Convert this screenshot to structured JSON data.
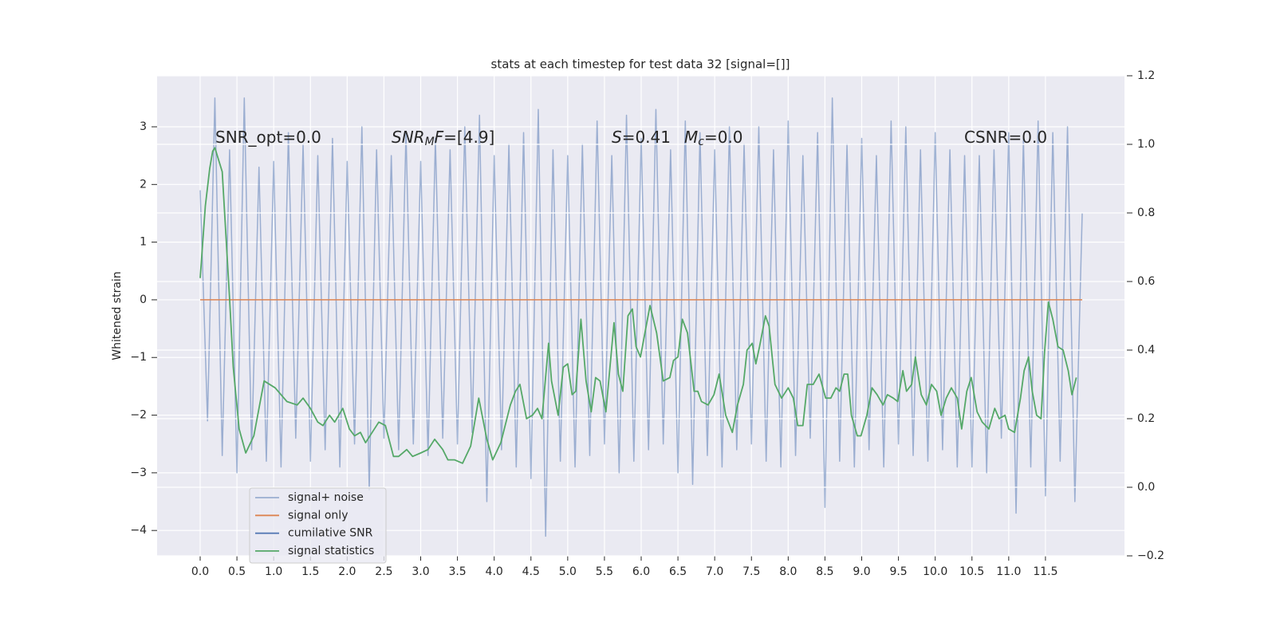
{
  "chart_data": {
    "type": "line",
    "title": "stats at each timestep for test data 32 [signal=[]]",
    "ylabel": "Whitened strain",
    "xlim": [
      -0.586,
      12.575
    ],
    "ylim": [
      -4.44,
      3.885
    ],
    "y2lim": [
      -0.2,
      1.2
    ],
    "xticks": [
      {
        "value": 0,
        "label": "0.0"
      },
      0.5,
      {
        "value": 1,
        "label": "1.0"
      },
      1.5,
      {
        "value": 2,
        "label": "2.0"
      },
      2.5,
      {
        "value": 3,
        "label": "3.0"
      },
      3.5,
      {
        "value": 4,
        "label": "4.0"
      },
      4.5,
      {
        "value": 5,
        "label": "5.0"
      },
      5.5,
      {
        "value": 6,
        "label": "6.0"
      },
      6.5,
      {
        "value": 7,
        "label": "7.0"
      },
      7.5,
      {
        "value": 8,
        "label": "8.0"
      },
      8.5,
      {
        "value": 9,
        "label": "9.0"
      },
      9.5,
      {
        "value": 10,
        "label": "10.0"
      },
      10.5,
      {
        "value": 11,
        "label": "11.0"
      },
      11.5
    ],
    "yticks": [
      {
        "value": -4,
        "label": "−4"
      },
      {
        "value": -3,
        "label": "−3"
      },
      {
        "value": -2,
        "label": "−2"
      },
      {
        "value": -1,
        "label": "−1"
      },
      0,
      1,
      2,
      3
    ],
    "y2ticks": [
      {
        "value": -0.2,
        "label": "−0.2"
      },
      {
        "value": 0,
        "label": "0.0"
      },
      0.2,
      0.4,
      0.6,
      0.8,
      {
        "value": 1,
        "label": "1.0"
      },
      1.2
    ],
    "grid": true,
    "legend": "lower left",
    "annotations": [
      {
        "parts": [
          {
            "text": "SNR_opt=0.0"
          }
        ]
      },
      {
        "parts": [
          {
            "text": "SNR",
            "italic": true
          },
          {
            "text": "M",
            "italic": true,
            "sub": true
          },
          {
            "text": "F",
            "italic": true
          },
          {
            "text": "=[4.9]"
          }
        ]
      },
      {
        "parts": [
          {
            "text": "S",
            "italic": true
          },
          {
            "text": "=0.41"
          }
        ]
      },
      {
        "parts": [
          {
            "text": "M",
            "italic": true
          },
          {
            "text": "c",
            "italic": true,
            "sub": true
          },
          {
            "text": "=0.0"
          }
        ]
      },
      {
        "parts": [
          {
            "text": "CSNR=0.0"
          }
        ]
      }
    ],
    "series": [
      {
        "name": "signal+ noise",
        "color": "#4c72b0",
        "opacity": 0.5,
        "x": [
          0,
          0.1,
          0.2,
          0.3,
          0.4,
          0.5,
          0.6,
          0.7,
          0.8,
          0.9,
          1,
          1.1,
          1.2,
          1.3,
          1.4,
          1.5,
          1.6,
          1.7,
          1.8,
          1.9,
          2,
          2.1,
          2.2,
          2.3,
          2.4,
          2.5,
          2.6,
          2.7,
          2.8,
          2.9,
          3,
          3.1,
          3.2,
          3.3,
          3.4,
          3.5,
          3.6,
          3.7,
          3.8,
          3.9,
          4,
          4.1,
          4.2,
          4.3,
          4.4,
          4.5,
          4.6,
          4.7,
          4.8,
          4.9,
          5,
          5.1,
          5.2,
          5.3,
          5.4,
          5.5,
          5.6,
          5.7,
          5.8,
          5.9,
          6,
          6.1,
          6.2,
          6.3,
          6.4,
          6.5,
          6.6,
          6.7,
          6.8,
          6.9,
          7,
          7.1,
          7.2,
          7.3,
          7.4,
          7.5,
          7.6,
          7.7,
          7.8,
          7.9,
          8,
          8.1,
          8.2,
          8.3,
          8.4,
          8.5,
          8.6,
          8.7,
          8.8,
          8.9,
          9,
          9.1,
          9.2,
          9.3,
          9.4,
          9.5,
          9.6,
          9.7,
          9.8,
          9.9,
          10,
          10.1,
          10.2,
          10.3,
          10.4,
          10.5,
          10.6,
          10.7,
          10.8,
          10.9,
          11,
          11.1,
          11.2,
          11.3,
          11.4,
          11.5,
          11.6,
          11.7,
          11.8,
          11.9,
          12
        ],
        "values": [
          1.9,
          -2.1,
          3.5,
          -2.7,
          2.6,
          -3.0,
          3.5,
          -2.6,
          2.3,
          -2.8,
          2.4,
          -2.9,
          2.9,
          -2.4,
          2.7,
          -2.8,
          2.5,
          -2.6,
          2.8,
          -2.9,
          2.4,
          -2.5,
          3.0,
          -3.3,
          2.6,
          -2.4,
          2.5,
          -2.6,
          2.9,
          -2.5,
          2.4,
          -2.7,
          2.8,
          -2.4,
          2.6,
          -2.5,
          3.0,
          -2.3,
          3.2,
          -3.5,
          2.5,
          -2.6,
          2.7,
          -2.9,
          2.9,
          -3.1,
          3.3,
          -4.1,
          2.6,
          -2.8,
          2.5,
          -2.9,
          2.7,
          -2.7,
          3.1,
          -2.5,
          2.5,
          -3.0,
          3.2,
          -2.8,
          2.8,
          -2.6,
          3.3,
          -2.5,
          2.6,
          -3.0,
          3.1,
          -3.2,
          2.9,
          -2.7,
          2.6,
          -2.9,
          3.0,
          -2.6,
          2.7,
          -2.5,
          3.0,
          -2.8,
          2.6,
          -2.9,
          3.1,
          -2.7,
          2.5,
          -2.4,
          2.9,
          -3.6,
          3.5,
          -2.8,
          2.7,
          -2.9,
          2.8,
          -2.6,
          2.5,
          -2.9,
          3.1,
          -2.5,
          3.0,
          -2.7,
          2.6,
          -2.8,
          2.9,
          -2.6,
          2.6,
          -2.9,
          2.5,
          -2.9,
          2.5,
          -3.0,
          2.6,
          -2.4,
          2.9,
          -3.7,
          2.8,
          -2.9,
          3.1,
          -3.4,
          2.9,
          -2.8,
          3.0,
          -3.5,
          1.5
        ]
      },
      {
        "name": "signal only",
        "color": "#dd8452",
        "x": [
          0,
          12
        ],
        "values": [
          0,
          0
        ]
      },
      {
        "name": "cumilative SNR",
        "color": "#4c72b0"
      },
      {
        "name": "signal statistics",
        "color": "#55a868",
        "axis": "y2",
        "x": [
          0,
          0.07,
          0.13,
          0.17,
          0.2,
          0.3,
          0.4,
          0.45,
          0.53,
          0.62,
          0.73,
          0.87,
          1.02,
          1.18,
          1.32,
          1.4,
          1.5,
          1.6,
          1.67,
          1.76,
          1.83,
          1.94,
          2.03,
          2.1,
          2.18,
          2.25,
          2.34,
          2.43,
          2.52,
          2.63,
          2.7,
          2.81,
          2.89,
          3.0,
          3.1,
          3.19,
          3.3,
          3.37,
          3.46,
          3.57,
          3.68,
          3.79,
          3.9,
          3.98,
          4.09,
          4.22,
          4.29,
          4.35,
          4.44,
          4.52,
          4.59,
          4.65,
          4.74,
          4.78,
          4.87,
          4.94,
          5.0,
          5.06,
          5.11,
          5.18,
          5.25,
          5.32,
          5.38,
          5.44,
          5.52,
          5.63,
          5.69,
          5.75,
          5.82,
          5.88,
          5.93,
          5.99,
          6.12,
          6.21,
          6.3,
          6.39,
          6.44,
          6.5,
          6.56,
          6.63,
          6.72,
          6.77,
          6.82,
          6.91,
          6.99,
          7.06,
          7.15,
          7.24,
          7.31,
          7.39,
          7.44,
          7.51,
          7.56,
          7.61,
          7.69,
          7.74,
          7.82,
          7.91,
          8.0,
          8.07,
          8.13,
          8.2,
          8.26,
          8.34,
          8.42,
          8.51,
          8.58,
          8.65,
          8.7,
          8.76,
          8.81,
          8.86,
          8.94,
          8.99,
          9.07,
          9.14,
          9.21,
          9.29,
          9.35,
          9.43,
          9.49,
          9.56,
          9.61,
          9.68,
          9.73,
          9.81,
          9.88,
          9.95,
          10.02,
          10.08,
          10.15,
          10.22,
          10.3,
          10.36,
          10.43,
          10.49,
          10.57,
          10.64,
          10.73,
          10.81,
          10.87,
          10.95,
          11.0,
          11.08,
          11.16,
          11.21,
          11.27,
          11.32,
          11.38,
          11.44,
          11.49,
          11.54,
          11.6,
          11.67,
          11.74,
          11.81,
          11.86,
          11.92
        ],
        "values": [
          0.61,
          0.82,
          0.93,
          0.98,
          0.99,
          0.92,
          0.55,
          0.35,
          0.17,
          0.1,
          0.15,
          0.31,
          0.29,
          0.25,
          0.24,
          0.26,
          0.23,
          0.19,
          0.18,
          0.21,
          0.19,
          0.23,
          0.17,
          0.15,
          0.16,
          0.13,
          0.16,
          0.19,
          0.18,
          0.09,
          0.09,
          0.11,
          0.09,
          0.1,
          0.11,
          0.14,
          0.11,
          0.08,
          0.08,
          0.07,
          0.12,
          0.26,
          0.14,
          0.08,
          0.13,
          0.24,
          0.28,
          0.3,
          0.2,
          0.21,
          0.23,
          0.2,
          0.42,
          0.31,
          0.21,
          0.35,
          0.36,
          0.27,
          0.28,
          0.49,
          0.31,
          0.22,
          0.32,
          0.31,
          0.22,
          0.48,
          0.33,
          0.28,
          0.5,
          0.52,
          0.41,
          0.38,
          0.53,
          0.45,
          0.31,
          0.32,
          0.37,
          0.38,
          0.49,
          0.45,
          0.28,
          0.28,
          0.25,
          0.24,
          0.27,
          0.33,
          0.21,
          0.16,
          0.24,
          0.3,
          0.4,
          0.42,
          0.36,
          0.41,
          0.5,
          0.47,
          0.3,
          0.26,
          0.29,
          0.26,
          0.18,
          0.18,
          0.3,
          0.3,
          0.33,
          0.26,
          0.26,
          0.29,
          0.28,
          0.33,
          0.33,
          0.21,
          0.15,
          0.15,
          0.21,
          0.29,
          0.27,
          0.24,
          0.27,
          0.26,
          0.25,
          0.34,
          0.28,
          0.3,
          0.38,
          0.27,
          0.24,
          0.3,
          0.28,
          0.21,
          0.26,
          0.29,
          0.26,
          0.17,
          0.28,
          0.32,
          0.22,
          0.19,
          0.17,
          0.23,
          0.2,
          0.21,
          0.17,
          0.16,
          0.26,
          0.34,
          0.38,
          0.28,
          0.21,
          0.2,
          0.4,
          0.54,
          0.49,
          0.41,
          0.4,
          0.34,
          0.27,
          0.32
        ]
      }
    ]
  }
}
